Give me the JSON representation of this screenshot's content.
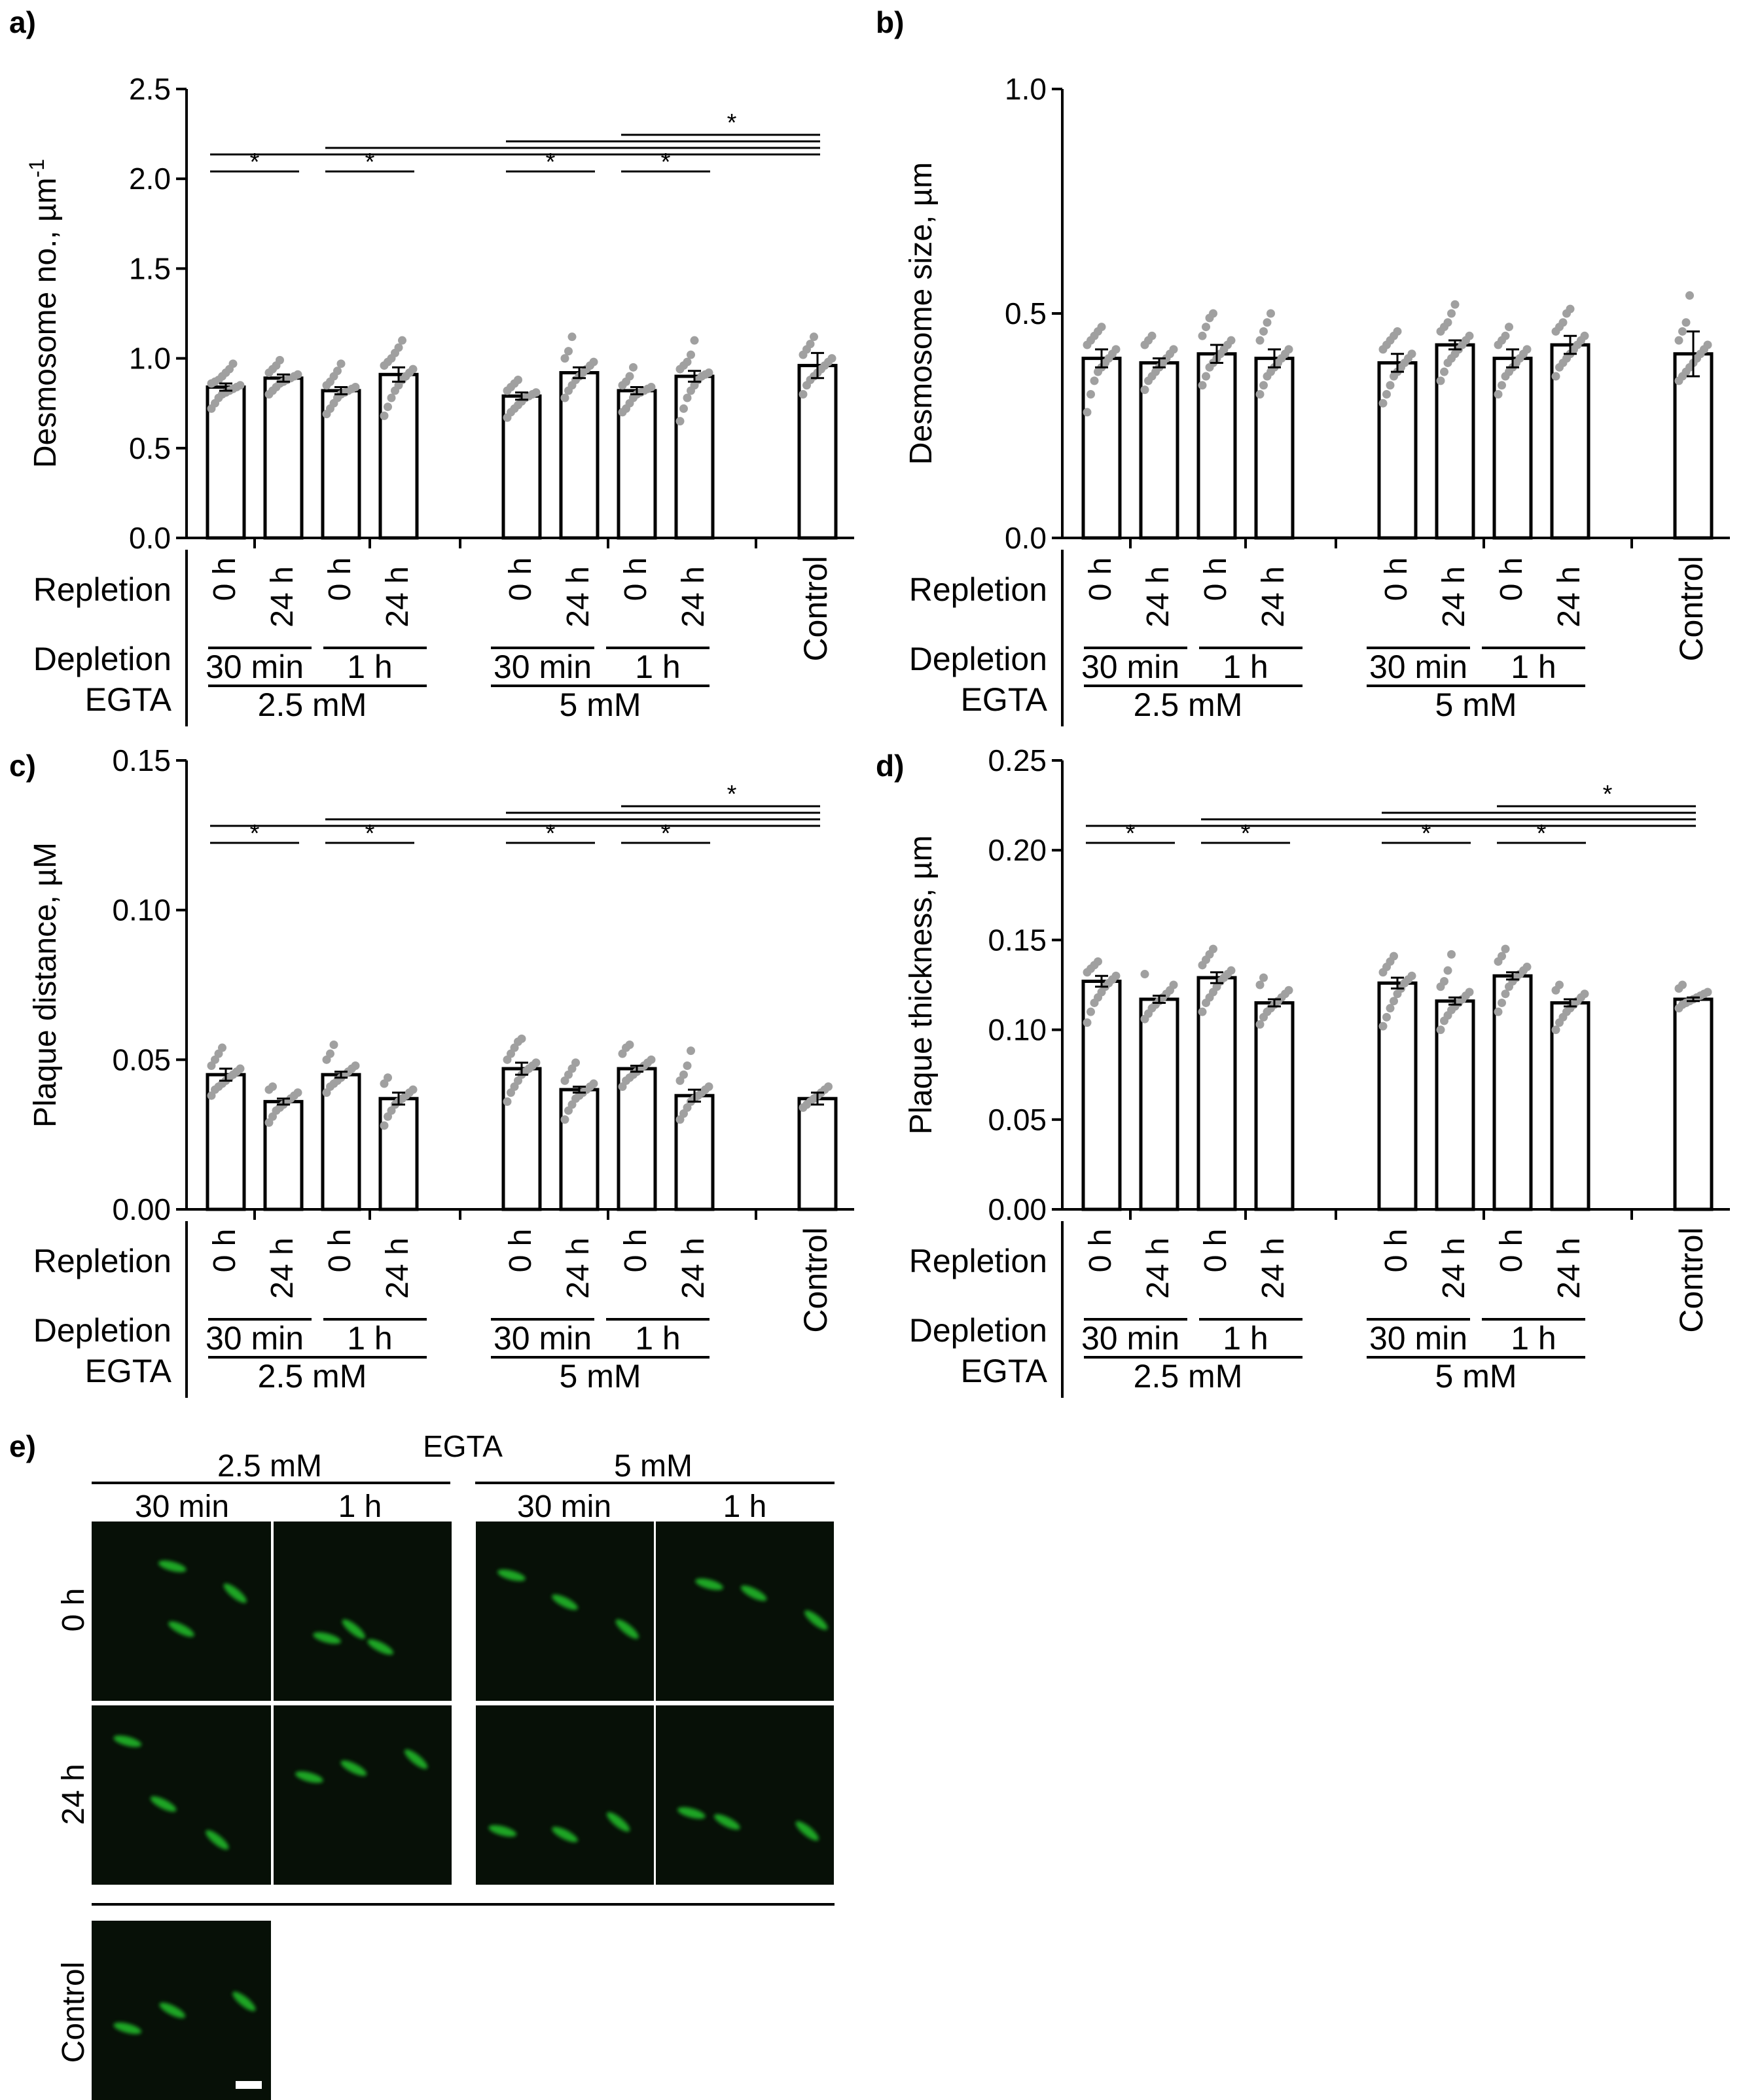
{
  "panels": {
    "a": {
      "letter": "a)"
    },
    "b": {
      "letter": "b)"
    },
    "c": {
      "letter": "c)"
    },
    "d": {
      "letter": "d)"
    },
    "e": {
      "letter": "e)"
    }
  },
  "row_labels": {
    "repletion": "Repletion",
    "depletion": "Depletion",
    "egta": "EGTA"
  },
  "conditions": {
    "repletion": [
      "0 h",
      "24 h",
      "0 h",
      "24 h",
      "0 h",
      "24 h",
      "0 h",
      "24 h"
    ],
    "depletion": [
      "30 min",
      "1 h",
      "30 min",
      "1 h"
    ],
    "egta": [
      "2.5 mM",
      "5 mM"
    ],
    "control": "Control"
  },
  "significance_mark": "*",
  "colors": {
    "bar_fill": "#ffffff",
    "bar_stroke": "#000000",
    "points": "#a0a0a0",
    "micrograph_bg": "#071007",
    "signal": "#22c02a",
    "scale_bar": "#ffffff"
  },
  "chart_data": [
    {
      "type": "bar",
      "panel": "a",
      "ylabel": "Desmosome no., µm",
      "ylabel_superscript": "-1",
      "ylim": [
        0,
        2.5
      ],
      "yticks": [
        "0.0",
        "0.5",
        "1.0",
        "1.5",
        "2.0",
        "2.5"
      ],
      "categories": [
        "2.5 mM 30 min 0 h",
        "2.5 mM 30 min 24 h",
        "2.5 mM 1 h 0 h",
        "2.5 mM 1 h 24 h",
        "5 mM 30 min 0 h",
        "5 mM 30 min 24 h",
        "5 mM 1 h 0 h",
        "5 mM 1 h 24 h",
        "Control"
      ],
      "values": [
        0.84,
        0.89,
        0.82,
        0.91,
        0.79,
        0.92,
        0.82,
        0.9,
        0.96
      ],
      "errors": [
        0.02,
        0.02,
        0.02,
        0.04,
        0.02,
        0.03,
        0.02,
        0.03,
        0.07
      ],
      "points": [
        [
          0.72,
          0.75,
          0.78,
          0.8,
          0.81,
          0.82,
          0.83,
          0.84,
          0.85,
          0.86,
          0.87,
          0.88,
          0.9,
          0.92,
          0.94,
          0.97
        ],
        [
          0.8,
          0.82,
          0.84,
          0.86,
          0.87,
          0.88,
          0.89,
          0.9,
          0.91,
          0.92,
          0.94,
          0.96,
          0.99
        ],
        [
          0.69,
          0.72,
          0.75,
          0.78,
          0.8,
          0.81,
          0.82,
          0.83,
          0.84,
          0.85,
          0.87,
          0.9,
          0.93,
          0.97
        ],
        [
          0.68,
          0.73,
          0.78,
          0.82,
          0.85,
          0.88,
          0.9,
          0.92,
          0.94,
          0.96,
          0.98,
          1.0,
          1.03,
          1.06,
          1.1
        ],
        [
          0.67,
          0.7,
          0.72,
          0.74,
          0.76,
          0.78,
          0.79,
          0.8,
          0.81,
          0.82,
          0.84,
          0.86,
          0.88
        ],
        [
          0.78,
          0.82,
          0.85,
          0.88,
          0.9,
          0.92,
          0.94,
          0.96,
          0.98,
          1.0,
          1.04,
          1.12
        ],
        [
          0.7,
          0.72,
          0.75,
          0.78,
          0.8,
          0.81,
          0.82,
          0.83,
          0.84,
          0.85,
          0.87,
          0.9,
          0.95
        ],
        [
          0.65,
          0.72,
          0.78,
          0.82,
          0.85,
          0.88,
          0.9,
          0.91,
          0.92,
          0.94,
          0.96,
          0.98,
          1.02,
          1.1
        ],
        [
          0.8,
          0.85,
          0.88,
          0.9,
          0.92,
          0.94,
          0.96,
          0.98,
          1.0,
          1.02,
          1.05,
          1.08,
          1.12
        ]
      ],
      "comparisons": [
        [
          0,
          1
        ],
        [
          2,
          3
        ],
        [
          4,
          5
        ],
        [
          6,
          7
        ]
      ],
      "control_comparisons": [
        0,
        2,
        4,
        6
      ]
    },
    {
      "type": "bar",
      "panel": "b",
      "ylabel": "Desmosome size, µm",
      "ylim": [
        0,
        1.0
      ],
      "yticks": [
        "0.0",
        "0.5",
        "1.0"
      ],
      "categories": [
        "2.5 mM 30 min 0 h",
        "2.5 mM 30 min 24 h",
        "2.5 mM 1 h 0 h",
        "2.5 mM 1 h 24 h",
        "5 mM 30 min 0 h",
        "5 mM 30 min 24 h",
        "5 mM 1 h 0 h",
        "5 mM 1 h 24 h",
        "Control"
      ],
      "values": [
        0.4,
        0.39,
        0.41,
        0.4,
        0.39,
        0.43,
        0.4,
        0.43,
        0.41
      ],
      "errors": [
        0.02,
        0.01,
        0.02,
        0.02,
        0.02,
        0.01,
        0.02,
        0.02,
        0.05
      ],
      "points": [
        [
          0.28,
          0.32,
          0.35,
          0.37,
          0.38,
          0.39,
          0.4,
          0.41,
          0.42,
          0.43,
          0.44,
          0.45,
          0.46,
          0.47
        ],
        [
          0.33,
          0.35,
          0.36,
          0.37,
          0.38,
          0.39,
          0.4,
          0.41,
          0.42,
          0.43,
          0.44,
          0.45
        ],
        [
          0.34,
          0.36,
          0.38,
          0.39,
          0.4,
          0.41,
          0.42,
          0.43,
          0.44,
          0.45,
          0.47,
          0.49,
          0.5
        ],
        [
          0.32,
          0.34,
          0.36,
          0.37,
          0.38,
          0.39,
          0.4,
          0.41,
          0.42,
          0.44,
          0.46,
          0.48,
          0.5
        ],
        [
          0.3,
          0.32,
          0.34,
          0.36,
          0.37,
          0.38,
          0.39,
          0.4,
          0.41,
          0.42,
          0.43,
          0.44,
          0.45,
          0.46
        ],
        [
          0.35,
          0.37,
          0.39,
          0.4,
          0.41,
          0.42,
          0.43,
          0.44,
          0.45,
          0.46,
          0.47,
          0.48,
          0.5,
          0.52
        ],
        [
          0.32,
          0.34,
          0.36,
          0.37,
          0.38,
          0.39,
          0.4,
          0.41,
          0.42,
          0.43,
          0.44,
          0.45,
          0.47
        ],
        [
          0.36,
          0.38,
          0.39,
          0.4,
          0.41,
          0.42,
          0.43,
          0.44,
          0.45,
          0.46,
          0.47,
          0.48,
          0.5,
          0.51
        ],
        [
          0.35,
          0.36,
          0.37,
          0.38,
          0.39,
          0.4,
          0.41,
          0.42,
          0.43,
          0.44,
          0.46,
          0.48,
          0.54
        ]
      ],
      "comparisons": [],
      "control_comparisons": []
    },
    {
      "type": "bar",
      "panel": "c",
      "ylabel": "Plaque distance, µM",
      "ylim": [
        0,
        0.15
      ],
      "yticks": [
        "0.00",
        "0.05",
        "0.10",
        "0.15"
      ],
      "categories": [
        "2.5 mM 30 min 0 h",
        "2.5 mM 30 min 24 h",
        "2.5 mM 1 h 0 h",
        "2.5 mM 1 h 24 h",
        "5 mM 30 min 0 h",
        "5 mM 30 min 24 h",
        "5 mM 1 h 0 h",
        "5 mM 1 h 24 h",
        "Control"
      ],
      "values": [
        0.045,
        0.036,
        0.045,
        0.037,
        0.047,
        0.04,
        0.047,
        0.038,
        0.037
      ],
      "errors": [
        0.002,
        0.001,
        0.001,
        0.002,
        0.002,
        0.001,
        0.001,
        0.002,
        0.002
      ],
      "points": [
        [
          0.038,
          0.04,
          0.041,
          0.042,
          0.043,
          0.044,
          0.045,
          0.046,
          0.047,
          0.048,
          0.05,
          0.052,
          0.054
        ],
        [
          0.029,
          0.031,
          0.033,
          0.034,
          0.035,
          0.036,
          0.037,
          0.038,
          0.039,
          0.04,
          0.041
        ],
        [
          0.039,
          0.041,
          0.042,
          0.043,
          0.044,
          0.045,
          0.046,
          0.047,
          0.048,
          0.05,
          0.052,
          0.055
        ],
        [
          0.028,
          0.031,
          0.033,
          0.035,
          0.036,
          0.037,
          0.038,
          0.039,
          0.04,
          0.042,
          0.044
        ],
        [
          0.036,
          0.039,
          0.041,
          0.043,
          0.045,
          0.046,
          0.047,
          0.048,
          0.049,
          0.05,
          0.052,
          0.054,
          0.056,
          0.057
        ],
        [
          0.03,
          0.033,
          0.035,
          0.037,
          0.038,
          0.039,
          0.04,
          0.041,
          0.042,
          0.043,
          0.045,
          0.047,
          0.049
        ],
        [
          0.041,
          0.043,
          0.044,
          0.045,
          0.046,
          0.047,
          0.048,
          0.049,
          0.05,
          0.052,
          0.054,
          0.055
        ],
        [
          0.03,
          0.032,
          0.034,
          0.036,
          0.037,
          0.038,
          0.039,
          0.04,
          0.041,
          0.043,
          0.045,
          0.048,
          0.053
        ],
        [
          0.034,
          0.035,
          0.036,
          0.037,
          0.038,
          0.039,
          0.04,
          0.041
        ]
      ],
      "comparisons": [
        [
          0,
          1
        ],
        [
          2,
          3
        ],
        [
          4,
          5
        ],
        [
          6,
          7
        ]
      ],
      "control_comparisons": [
        0,
        2,
        4,
        6
      ]
    },
    {
      "type": "bar",
      "panel": "d",
      "ylabel": "Plaque thickness, µm",
      "ylim": [
        0,
        0.25
      ],
      "yticks": [
        "0.00",
        "0.05",
        "0.10",
        "0.15",
        "0.20",
        "0.25"
      ],
      "categories": [
        "2.5 mM 30 min 0 h",
        "2.5 mM 30 min 24 h",
        "2.5 mM 1 h 0 h",
        "2.5 mM 1 h 24 h",
        "5 mM 30 min 0 h",
        "5 mM 30 min 24 h",
        "5 mM 1 h 0 h",
        "5 mM 1 h 24 h",
        "Control"
      ],
      "values": [
        0.127,
        0.117,
        0.129,
        0.115,
        0.126,
        0.116,
        0.13,
        0.115,
        0.117
      ],
      "errors": [
        0.003,
        0.002,
        0.003,
        0.002,
        0.003,
        0.002,
        0.002,
        0.002,
        0.001
      ],
      "points": [
        [
          0.104,
          0.11,
          0.115,
          0.118,
          0.121,
          0.124,
          0.126,
          0.128,
          0.13,
          0.132,
          0.134,
          0.136,
          0.138
        ],
        [
          0.106,
          0.109,
          0.112,
          0.114,
          0.116,
          0.118,
          0.12,
          0.122,
          0.125,
          0.131
        ],
        [
          0.11,
          0.115,
          0.118,
          0.121,
          0.124,
          0.127,
          0.129,
          0.131,
          0.133,
          0.136,
          0.139,
          0.142,
          0.145
        ],
        [
          0.103,
          0.107,
          0.11,
          0.112,
          0.114,
          0.116,
          0.118,
          0.12,
          0.122,
          0.125,
          0.129
        ],
        [
          0.102,
          0.107,
          0.112,
          0.116,
          0.12,
          0.123,
          0.126,
          0.128,
          0.13,
          0.132,
          0.135,
          0.138,
          0.141
        ],
        [
          0.1,
          0.105,
          0.108,
          0.111,
          0.113,
          0.115,
          0.117,
          0.119,
          0.121,
          0.124,
          0.127,
          0.133,
          0.142
        ],
        [
          0.11,
          0.115,
          0.12,
          0.124,
          0.127,
          0.129,
          0.131,
          0.133,
          0.135,
          0.138,
          0.141,
          0.145
        ],
        [
          0.1,
          0.104,
          0.107,
          0.11,
          0.112,
          0.114,
          0.116,
          0.118,
          0.12,
          0.122,
          0.125
        ],
        [
          0.112,
          0.114,
          0.115,
          0.116,
          0.117,
          0.118,
          0.119,
          0.12,
          0.121,
          0.123,
          0.125
        ]
      ],
      "comparisons": [
        [
          0,
          1
        ],
        [
          2,
          3
        ],
        [
          4,
          5
        ],
        [
          6,
          7
        ]
      ],
      "control_comparisons": [
        0,
        2,
        4,
        6
      ]
    }
  ],
  "micrographs": {
    "egta_label": "EGTA",
    "concentration_headers": [
      "2.5 mM",
      "5 mM"
    ],
    "duration_headers": [
      "30 min",
      "1 h",
      "30 min",
      "1 h"
    ],
    "row_headers": [
      "0 h",
      "24 h"
    ],
    "control_label": "Control"
  }
}
